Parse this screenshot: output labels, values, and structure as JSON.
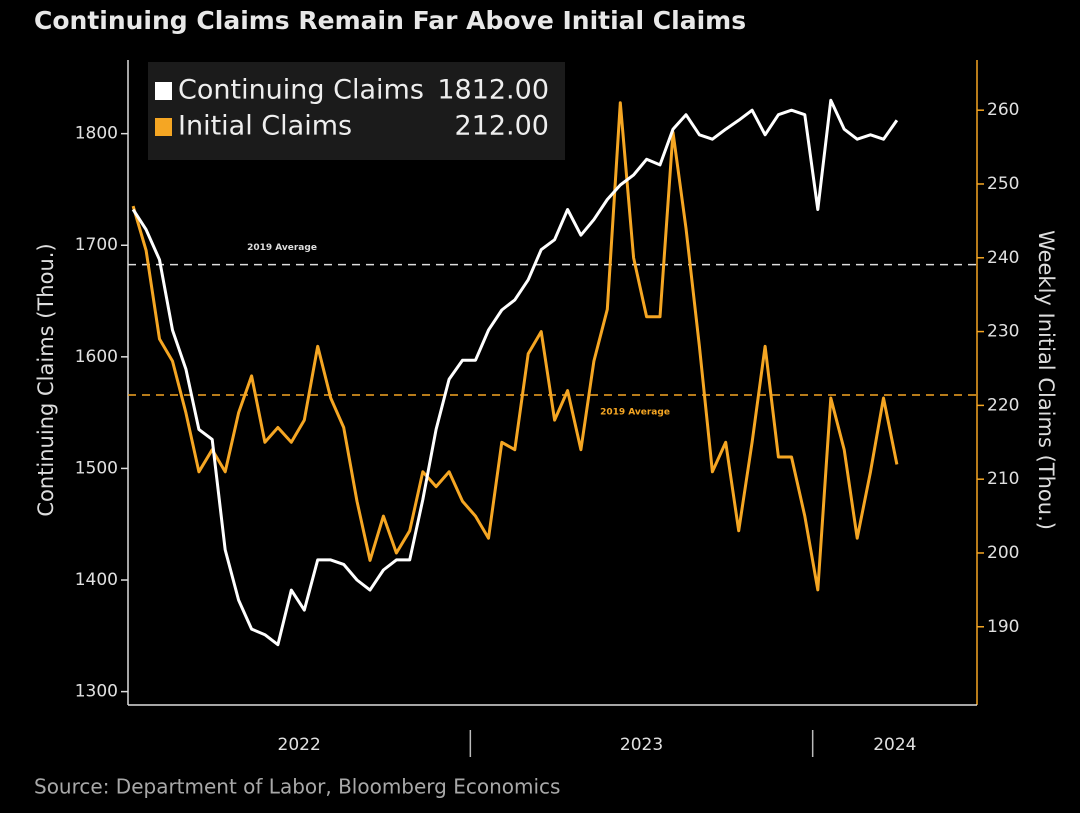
{
  "chart_data": {
    "type": "line",
    "title": "Continuing Claims Remain Far Above Initial Claims",
    "source": "Source: Department of Labor, Bloomberg Economics",
    "y_label": "Continuing Claims (Thou.)",
    "y2_label": "Weekly Initial Claims (Thou.)",
    "x": [
      2022.015,
      2022.053,
      2022.092,
      2022.13,
      2022.169,
      2022.207,
      2022.246,
      2022.284,
      2022.323,
      2022.361,
      2022.4,
      2022.438,
      2022.477,
      2022.515,
      2022.554,
      2022.592,
      2022.63,
      2022.669,
      2022.707,
      2022.746,
      2022.784,
      2022.823,
      2022.861,
      2022.9,
      2022.938,
      2022.977,
      2023.015,
      2023.053,
      2023.092,
      2023.13,
      2023.169,
      2023.207,
      2023.246,
      2023.284,
      2023.323,
      2023.361,
      2023.4,
      2023.438,
      2023.477,
      2023.515,
      2023.554,
      2023.592,
      2023.63,
      2023.669,
      2023.707,
      2023.746,
      2023.784,
      2023.823,
      2023.861,
      2023.9,
      2023.938,
      2023.977,
      2024.015,
      2024.053,
      2024.092,
      2024.13,
      2024.169,
      2024.207,
      2024.246
    ],
    "xlim": [
      2022.0,
      2024.48
    ],
    "xticks": [
      {
        "value": 2022,
        "label": "2022"
      },
      {
        "value": 2023,
        "label": "2023"
      },
      {
        "value": 2024,
        "label": "2024"
      }
    ],
    "ylim": [
      1288,
      1866
    ],
    "yticks": [
      1300,
      1400,
      1500,
      1600,
      1700,
      1800
    ],
    "y2lim": [
      179.4,
      266.8
    ],
    "y2ticks": [
      190,
      200,
      210,
      220,
      230,
      240,
      250,
      260
    ],
    "legend_values": [
      "1812.00",
      "212.00"
    ],
    "series": [
      {
        "name": "Continuing Claims",
        "color": "#ffffff",
        "axis": "y",
        "values": [
          1732,
          1714,
          1687,
          1624,
          1589,
          1535,
          1526,
          1427,
          1382,
          1356,
          1351,
          1342,
          1391,
          1373,
          1418,
          1418,
          1414,
          1400,
          1391,
          1409,
          1418,
          1418,
          1472,
          1535,
          1580,
          1597,
          1597,
          1624,
          1642,
          1651,
          1669,
          1696,
          1705,
          1732,
          1709,
          1723,
          1741,
          1754,
          1763,
          1777,
          1772,
          1804,
          1817,
          1799,
          1795,
          1804,
          1812,
          1821,
          1799,
          1817,
          1821,
          1817,
          1732,
          1830,
          1804,
          1795,
          1799,
          1795,
          1812
        ]
      },
      {
        "name": "Initial Claims",
        "color": "#f5a623",
        "axis": "y2",
        "values": [
          247,
          241,
          229,
          226,
          219,
          211,
          214,
          211,
          219,
          224,
          215,
          217,
          215,
          218,
          228,
          221,
          217,
          207,
          199,
          205,
          200,
          203,
          211,
          209,
          211,
          207,
          205,
          202,
          215,
          214,
          227,
          230,
          218,
          222,
          214,
          226,
          233,
          261,
          240,
          232,
          232,
          257,
          244,
          228,
          211,
          215,
          203,
          215,
          228,
          213,
          213,
          205,
          195,
          221,
          214,
          202,
          211,
          221,
          212
        ]
      }
    ],
    "annotations": [
      {
        "text": "2019 Average",
        "value": 1682.6,
        "axis": "y",
        "color": "#dddddd"
      },
      {
        "text": "2019 Average",
        "value": 221.4,
        "axis": "y2",
        "color": "#f5a623"
      }
    ]
  }
}
